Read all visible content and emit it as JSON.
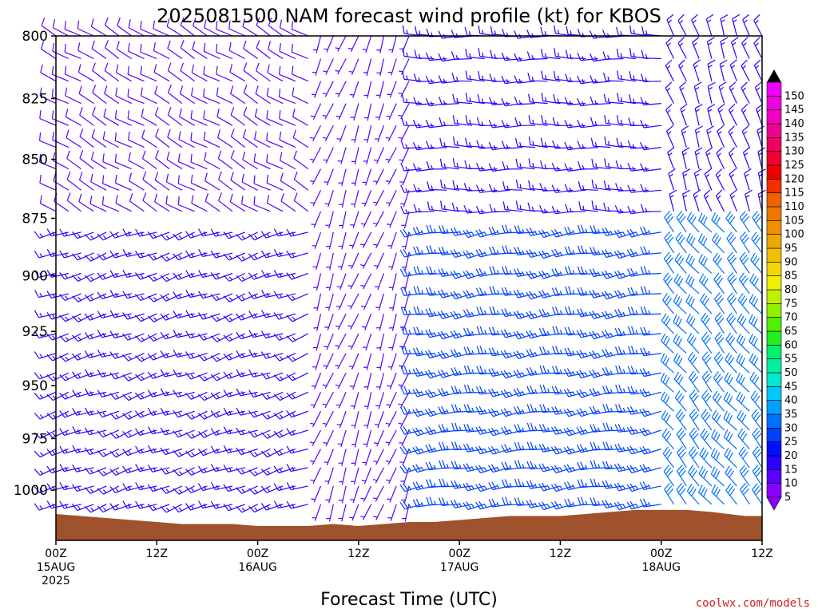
{
  "chart_data": {
    "type": "wind-barb-time-height",
    "title": "2025081500 NAM forecast wind profile (kt) for KBOS",
    "xlabel": "Forecast Time (UTC)",
    "ylabel": "",
    "y_axis": {
      "unit": "hPa",
      "range": [
        1025,
        800
      ],
      "ticks": [
        800,
        825,
        850,
        875,
        900,
        925,
        950,
        975,
        1000
      ]
    },
    "x_axis": {
      "range_hours": [
        0,
        84
      ],
      "ticks": [
        {
          "hour": 0,
          "label1": "00Z",
          "label2": "15AUG",
          "label3": "2025"
        },
        {
          "hour": 12,
          "label1": "12Z",
          "label2": "",
          "label3": ""
        },
        {
          "hour": 24,
          "label1": "00Z",
          "label2": "16AUG",
          "label3": ""
        },
        {
          "hour": 36,
          "label1": "12Z",
          "label2": "",
          "label3": ""
        },
        {
          "hour": 48,
          "label1": "00Z",
          "label2": "17AUG",
          "label3": ""
        },
        {
          "hour": 60,
          "label1": "12Z",
          "label2": "",
          "label3": ""
        },
        {
          "hour": 72,
          "label1": "00Z",
          "label2": "18AUG",
          "label3": ""
        },
        {
          "hour": 84,
          "label1": "12Z",
          "label2": "",
          "label3": ""
        }
      ]
    },
    "colorbar": {
      "levels": [
        5,
        10,
        15,
        20,
        25,
        30,
        35,
        40,
        45,
        50,
        55,
        60,
        65,
        70,
        75,
        80,
        85,
        90,
        95,
        100,
        105,
        110,
        115,
        120,
        125,
        130,
        135,
        140,
        145,
        150
      ],
      "colors": [
        "#8a00ff",
        "#5a00ff",
        "#2a00ff",
        "#0010ff",
        "#0040ff",
        "#0070ff",
        "#00a0ff",
        "#00c8ff",
        "#00e8d0",
        "#00f0a0",
        "#00f070",
        "#20f020",
        "#50f000",
        "#90f000",
        "#c0f000",
        "#f0f000",
        "#f0d800",
        "#f0c000",
        "#f0a800",
        "#f09000",
        "#f07800",
        "#f06000",
        "#f03000",
        "#f00000",
        "#f00030",
        "#f00060",
        "#f00090",
        "#f000c0",
        "#f000e0",
        "#f000ff"
      ]
    },
    "terrain": {
      "color": "#a0522d",
      "surface_pressure": [
        {
          "hour": 0,
          "hpa": 1012
        },
        {
          "hour": 3,
          "hpa": 1013
        },
        {
          "hour": 6,
          "hpa": 1014
        },
        {
          "hour": 9,
          "hpa": 1015
        },
        {
          "hour": 12,
          "hpa": 1016
        },
        {
          "hour": 15,
          "hpa": 1017
        },
        {
          "hour": 18,
          "hpa": 1017
        },
        {
          "hour": 21,
          "hpa": 1017
        },
        {
          "hour": 24,
          "hpa": 1018
        },
        {
          "hour": 27,
          "hpa": 1018
        },
        {
          "hour": 30,
          "hpa": 1018
        },
        {
          "hour": 33,
          "hpa": 1017
        },
        {
          "hour": 36,
          "hpa": 1018
        },
        {
          "hour": 39,
          "hpa": 1017
        },
        {
          "hour": 42,
          "hpa": 1016
        },
        {
          "hour": 45,
          "hpa": 1016
        },
        {
          "hour": 48,
          "hpa": 1015
        },
        {
          "hour": 51,
          "hpa": 1014
        },
        {
          "hour": 54,
          "hpa": 1013
        },
        {
          "hour": 57,
          "hpa": 1013
        },
        {
          "hour": 60,
          "hpa": 1013
        },
        {
          "hour": 63,
          "hpa": 1012
        },
        {
          "hour": 66,
          "hpa": 1011
        },
        {
          "hour": 69,
          "hpa": 1010
        },
        {
          "hour": 72,
          "hpa": 1010
        },
        {
          "hour": 75,
          "hpa": 1010
        },
        {
          "hour": 78,
          "hpa": 1011
        },
        {
          "hour": 80,
          "hpa": 1012
        },
        {
          "hour": 82,
          "hpa": 1013
        },
        {
          "hour": 84,
          "hpa": 1013
        }
      ]
    },
    "barb_grid": {
      "hour_step": 1.5,
      "hour_start": 0,
      "hour_end": 84,
      "pressure_levels": [
        800,
        809,
        818,
        827,
        836,
        845,
        854,
        863,
        872,
        881,
        890,
        899,
        908,
        917,
        926,
        935,
        944,
        953,
        962,
        971,
        980,
        989,
        998,
        1007,
        1016
      ],
      "regimes": [
        {
          "hours": [
            0,
            30
          ],
          "levels": [
            800,
            880
          ],
          "dir_deg": 300,
          "speed_kt": 10
        },
        {
          "hours": [
            0,
            30
          ],
          "levels": [
            880,
            1020
          ],
          "dir_deg": 250,
          "speed_kt": 15
        },
        {
          "hours": [
            30,
            42
          ],
          "levels": [
            800,
            1020
          ],
          "dir_deg": 200,
          "speed_kt": 7
        },
        {
          "hours": [
            42,
            72
          ],
          "levels": [
            800,
            880
          ],
          "dir_deg": 270,
          "speed_kt": 15
        },
        {
          "hours": [
            42,
            72
          ],
          "levels": [
            880,
            1020
          ],
          "dir_deg": 260,
          "speed_kt": 25
        },
        {
          "hours": [
            72,
            84
          ],
          "levels": [
            800,
            880
          ],
          "dir_deg": 340,
          "speed_kt": 15
        },
        {
          "hours": [
            72,
            84
          ],
          "levels": [
            880,
            1020
          ],
          "dir_deg": 320,
          "speed_kt": 28
        }
      ]
    }
  },
  "credit": "coolwx.com/models"
}
